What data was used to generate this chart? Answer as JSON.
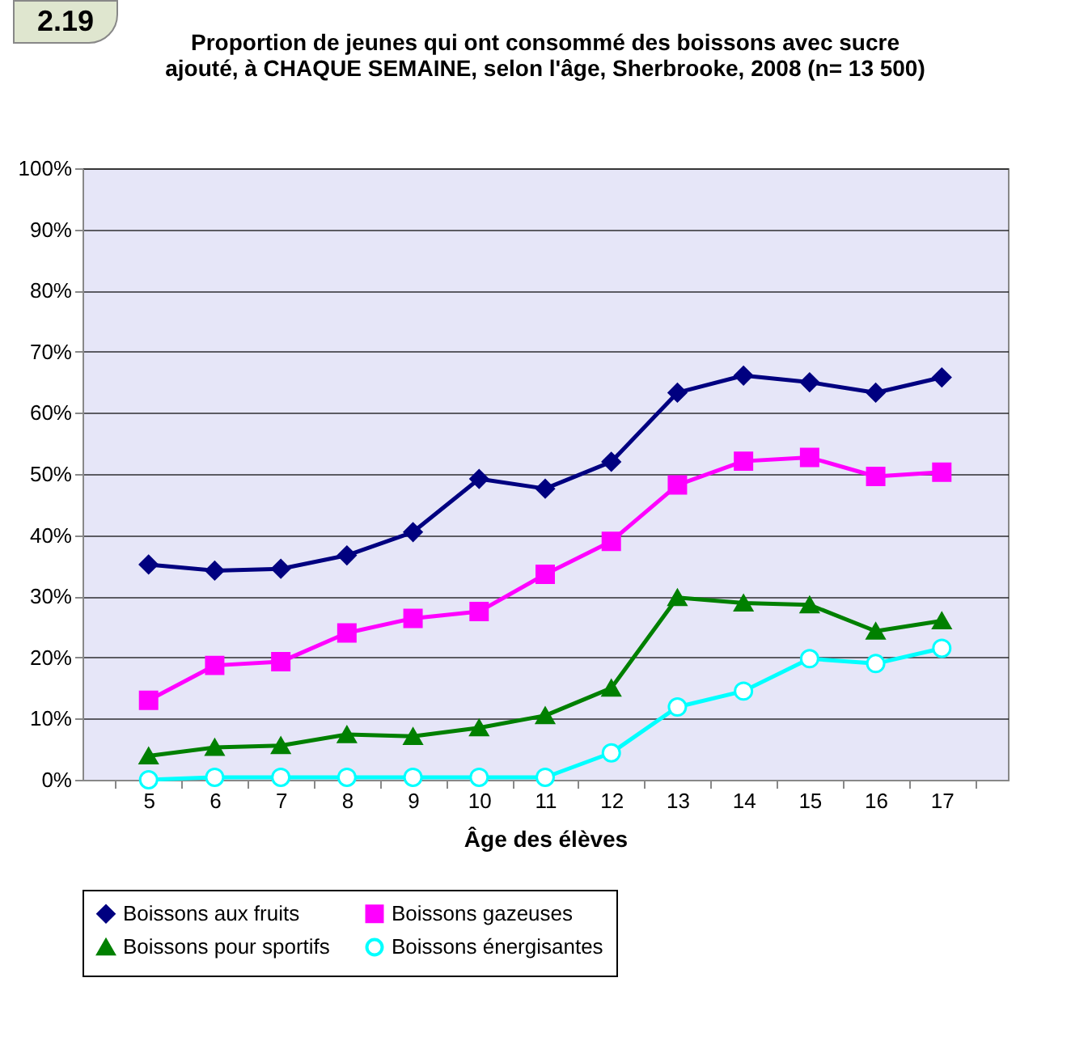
{
  "chart_data": {
    "type": "line",
    "title": "Proportion de jeunes qui ont consommé des boissons avec sucre ajouté, à CHAQUE SEMAINE, selon l'âge, Sherbrooke, 2008 (n= 13 500)",
    "xlabel": "Âge des élèves",
    "annotations": [
      "2.19"
    ],
    "categories": [
      "5",
      "6",
      "7",
      "8",
      "9",
      "10",
      "11",
      "12",
      "13",
      "14",
      "15",
      "16",
      "17"
    ],
    "ylim": [
      0,
      100
    ],
    "yticks": [
      {
        "value": 0,
        "label": "0%"
      },
      {
        "value": 10,
        "label": "10%"
      },
      {
        "value": 20,
        "label": "20%"
      },
      {
        "value": 30,
        "label": "30%"
      },
      {
        "value": 40,
        "label": "40%"
      },
      {
        "value": 50,
        "label": "50%"
      },
      {
        "value": 60,
        "label": "60%"
      },
      {
        "value": 70,
        "label": "70%"
      },
      {
        "value": 80,
        "label": "80%"
      },
      {
        "value": 90,
        "label": "90%"
      },
      {
        "value": 100,
        "label": "100%"
      }
    ],
    "grid": "y",
    "legend": "bottom",
    "series": [
      {
        "name": "Boissons aux fruits",
        "color": "#000080",
        "marker": "diamond",
        "values": [
          35.2,
          34.2,
          34.5,
          36.7,
          40.5,
          49.2,
          47.6,
          52,
          63.3,
          66.1,
          65,
          63.3,
          65.8
        ]
      },
      {
        "name": "Boissons gazeuses",
        "color": "#ff00ff",
        "marker": "square",
        "values": [
          13,
          18.7,
          19.3,
          24,
          26.4,
          27.5,
          33.6,
          39,
          48.2,
          52.1,
          52.7,
          49.6,
          50.3
        ]
      },
      {
        "name": "Boissons pour sportifs",
        "color": "#008000",
        "marker": "triangle",
        "values": [
          3.9,
          5.3,
          5.6,
          7.4,
          7.1,
          8.5,
          10.5,
          15,
          29.8,
          28.9,
          28.6,
          24.3,
          26
        ]
      },
      {
        "name": "Boissons énergisantes",
        "color": "#00ffff",
        "marker": "circle",
        "values": [
          0,
          0.4,
          0.4,
          0.4,
          0.4,
          0.4,
          0.4,
          4.4,
          11.9,
          14.5,
          19.8,
          19,
          21.5
        ]
      }
    ]
  }
}
